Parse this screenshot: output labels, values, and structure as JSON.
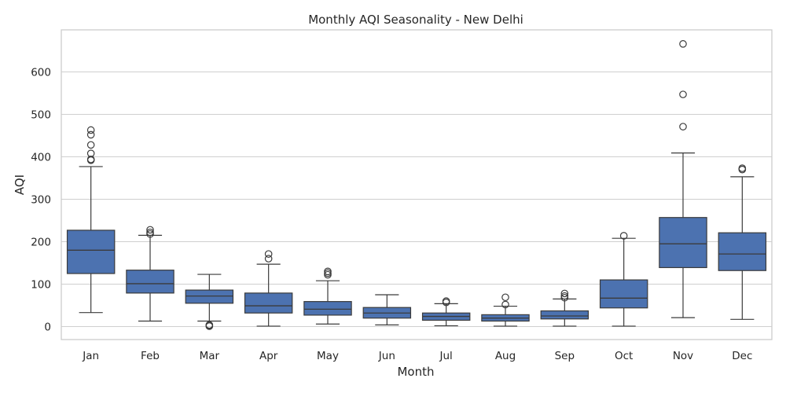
{
  "chart_data": {
    "type": "box",
    "title": "Monthly AQI Seasonality - New Delhi",
    "xlabel": "Month",
    "ylabel": "AQI",
    "ylim": [
      -30,
      700
    ],
    "yticks": [
      0,
      100,
      200,
      300,
      400,
      500,
      600
    ],
    "grid": "horizontal",
    "box_color": "#4c72b0",
    "line_color": "#3b3b3b",
    "categories": [
      "Jan",
      "Feb",
      "Mar",
      "Apr",
      "May",
      "Jun",
      "Jul",
      "Aug",
      "Sep",
      "Oct",
      "Nov",
      "Dec"
    ],
    "boxes": [
      {
        "whisker_low": 33,
        "q1": 125,
        "median": 180,
        "q3": 227,
        "whisker_high": 377,
        "outliers": [
          392,
          394,
          408,
          428,
          452,
          463
        ]
      },
      {
        "whisker_low": 13,
        "q1": 79,
        "median": 101,
        "q3": 133,
        "whisker_high": 215,
        "outliers": [
          218,
          222,
          228
        ]
      },
      {
        "whisker_low": 13,
        "q1": 55,
        "median": 72,
        "q3": 86,
        "whisker_high": 123,
        "outliers": [
          1,
          3,
          4
        ]
      },
      {
        "whisker_low": 1,
        "q1": 32,
        "median": 49,
        "q3": 79,
        "whisker_high": 147,
        "outliers": [
          160,
          171
        ]
      },
      {
        "whisker_low": 6,
        "q1": 27,
        "median": 41,
        "q3": 59,
        "whisker_high": 108,
        "outliers": [
          122,
          126,
          130
        ]
      },
      {
        "whisker_low": 4,
        "q1": 20,
        "median": 32,
        "q3": 45,
        "whisker_high": 75,
        "outliers": []
      },
      {
        "whisker_low": 2,
        "q1": 15,
        "median": 24,
        "q3": 32,
        "whisker_high": 54,
        "outliers": [
          57,
          60
        ]
      },
      {
        "whisker_low": 1,
        "q1": 13,
        "median": 20,
        "q3": 28,
        "whisker_high": 48,
        "outliers": [
          52,
          69
        ]
      },
      {
        "whisker_low": 1,
        "q1": 18,
        "median": 25,
        "q3": 37,
        "whisker_high": 65,
        "outliers": [
          68,
          72,
          78
        ]
      },
      {
        "whisker_low": 1,
        "q1": 44,
        "median": 67,
        "q3": 110,
        "whisker_high": 208,
        "outliers": [
          214
        ]
      },
      {
        "whisker_low": 21,
        "q1": 139,
        "median": 195,
        "q3": 257,
        "whisker_high": 409,
        "outliers": [
          471,
          547,
          666
        ]
      },
      {
        "whisker_low": 17,
        "q1": 132,
        "median": 171,
        "q3": 221,
        "whisker_high": 353,
        "outliers": [
          370,
          373
        ]
      }
    ]
  }
}
